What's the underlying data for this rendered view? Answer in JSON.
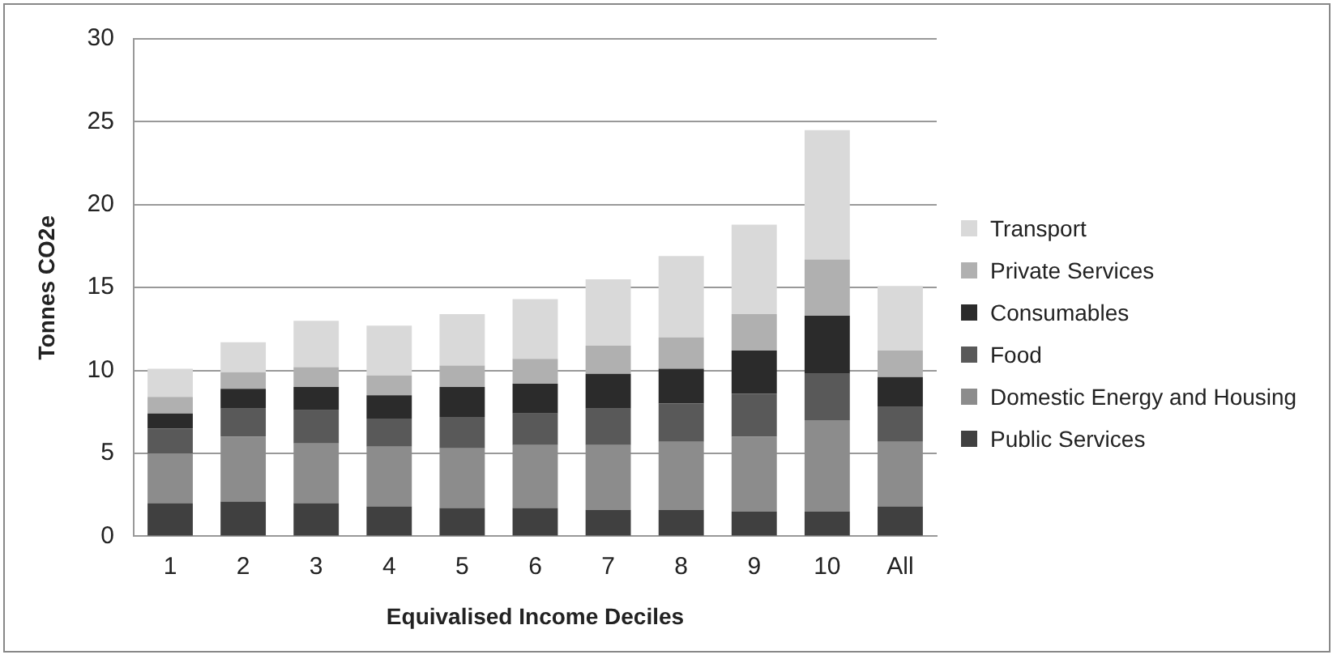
{
  "chart_data": {
    "type": "bar",
    "stacked": true,
    "xlabel": "Equivalised Income Deciles",
    "ylabel": "Tonnes CO2e",
    "categories": [
      "1",
      "2",
      "3",
      "4",
      "5",
      "6",
      "7",
      "8",
      "9",
      "10",
      "All"
    ],
    "series": [
      {
        "name": "Public Services",
        "color": "#404040",
        "values": [
          2.0,
          2.1,
          2.0,
          1.8,
          1.7,
          1.7,
          1.6,
          1.6,
          1.5,
          1.5,
          1.8
        ]
      },
      {
        "name": "Domestic Energy and Housing",
        "color": "#8c8c8c",
        "values": [
          3.0,
          3.9,
          3.6,
          3.6,
          3.6,
          3.8,
          3.9,
          4.1,
          4.5,
          5.5,
          3.9
        ]
      },
      {
        "name": "Food",
        "color": "#595959",
        "values": [
          1.5,
          1.7,
          2.0,
          1.7,
          1.9,
          1.9,
          2.2,
          2.3,
          2.6,
          2.8,
          2.1
        ]
      },
      {
        "name": "Consumables",
        "color": "#2b2b2b",
        "values": [
          0.9,
          1.2,
          1.4,
          1.4,
          1.8,
          1.8,
          2.1,
          2.1,
          2.6,
          3.5,
          1.8
        ]
      },
      {
        "name": "Private Services",
        "color": "#b0b0b0",
        "values": [
          1.0,
          1.0,
          1.2,
          1.2,
          1.3,
          1.5,
          1.7,
          1.9,
          2.2,
          3.4,
          1.6
        ]
      },
      {
        "name": "Transport",
        "color": "#d9d9d9",
        "values": [
          1.7,
          1.8,
          2.8,
          3.0,
          3.1,
          3.6,
          4.0,
          4.9,
          5.4,
          7.8,
          3.9
        ]
      }
    ],
    "ylim": [
      0,
      30
    ],
    "yticks": [
      0,
      5,
      10,
      15,
      20,
      25,
      30
    ],
    "grid": "y",
    "legend": "right"
  }
}
